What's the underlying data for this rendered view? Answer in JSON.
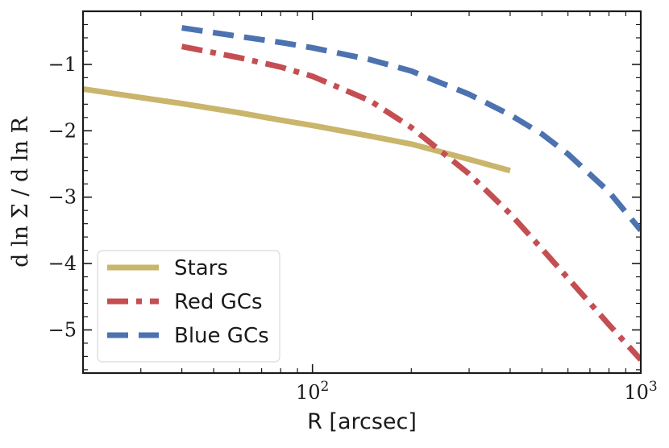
{
  "chart_data": {
    "type": "line",
    "title": "",
    "xlabel": "R [arcsec]",
    "ylabel": "d ln Σ / d ln R",
    "xscale": "log",
    "xlim": [
      20,
      1000
    ],
    "ylim": [
      -5.65,
      -0.2
    ],
    "x_ticks": [
      {
        "value": 100,
        "base": "10",
        "exp": "2"
      },
      {
        "value": 1000,
        "base": "10",
        "exp": "3"
      }
    ],
    "y_ticks": [
      {
        "value": -1,
        "label": "−1"
      },
      {
        "value": -2,
        "label": "−2"
      },
      {
        "value": -3,
        "label": "−3"
      },
      {
        "value": -4,
        "label": "−4"
      },
      {
        "value": -5,
        "label": "−5"
      }
    ],
    "legend_position": "lower-left",
    "series": [
      {
        "name": "Stars",
        "color": "#c9b56b",
        "style": "solid",
        "x": [
          20,
          30,
          40,
          60,
          80,
          100,
          150,
          200,
          300,
          400
        ],
        "y": [
          -1.37,
          -1.5,
          -1.59,
          -1.73,
          -1.84,
          -1.92,
          -2.08,
          -2.2,
          -2.43,
          -2.6
        ]
      },
      {
        "name": "Red GCs",
        "color": "#c44e52",
        "style": "dashdot",
        "x": [
          40,
          60,
          80,
          100,
          150,
          200,
          300,
          400,
          500,
          600,
          800,
          1000
        ],
        "y": [
          -0.73,
          -0.9,
          -1.04,
          -1.18,
          -1.55,
          -1.95,
          -2.65,
          -3.25,
          -3.78,
          -4.22,
          -4.92,
          -5.45
        ]
      },
      {
        "name": "Blue GCs",
        "color": "#4c72b0",
        "style": "dashed",
        "x": [
          40,
          60,
          80,
          100,
          150,
          200,
          300,
          400,
          500,
          600,
          800,
          1000
        ],
        "y": [
          -0.45,
          -0.58,
          -0.67,
          -0.75,
          -0.93,
          -1.1,
          -1.45,
          -1.76,
          -2.05,
          -2.35,
          -2.92,
          -3.5
        ]
      }
    ]
  }
}
